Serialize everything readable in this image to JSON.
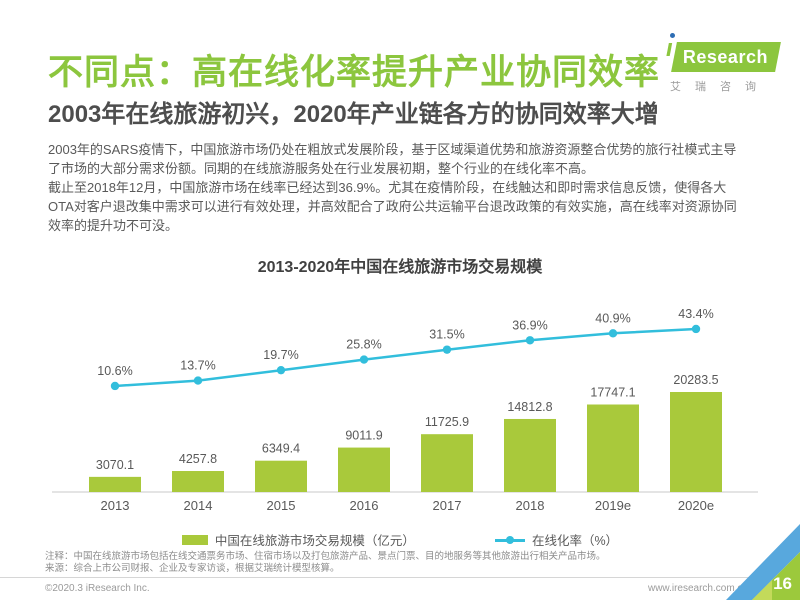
{
  "header": {
    "title": "不同点：高在线化率提升产业协同效率",
    "subtitle": "2003年在线旅游初兴，2020年产业链各方的协同效率大增",
    "logo": {
      "brand": "Research",
      "brand_i": "ı",
      "caption": "艾瑞咨询"
    }
  },
  "body": {
    "lines": [
      "2003年的SARS疫情下，中国旅游市场仍处在粗放式发展阶段，基于区域渠道优势和旅游资源整合优势的旅行社模式主导",
      "了市场的大部分需求份额。同期的在线旅游服务处在行业发展初期，整个行业的在线化率不高。",
      "截止至2018年12月，中国旅游市场在线率已经达到36.9%。尤其在疫情阶段，在线触达和即时需求信息反馈，使得各大",
      "OTA对客户退改集中需求可以进行有效处理，并高效配合了政府公共运输平台退改政策的有效实施，高在线率对资源协同",
      "效率的提升功不可没。"
    ]
  },
  "chart_data": {
    "type": "bar+line",
    "title": "2013-2020年中国在线旅游市场交易规模",
    "categories": [
      "2013",
      "2014",
      "2015",
      "2016",
      "2017",
      "2018",
      "2019e",
      "2020e"
    ],
    "series": [
      {
        "name": "中国在线旅游市场交易规模（亿元）",
        "type": "bar",
        "values": [
          3070.1,
          4257.8,
          6349.4,
          9011.9,
          11725.9,
          14812.8,
          17747.1,
          20283.5
        ],
        "color": "#A9C93B"
      },
      {
        "name": "在线化率（%）",
        "type": "line",
        "values": [
          10.6,
          13.7,
          19.7,
          25.8,
          31.5,
          36.9,
          40.9,
          43.4
        ],
        "unit": "%",
        "color": "#32BEDC"
      }
    ],
    "xlabel": "",
    "ylabel": "",
    "grid": false,
    "legend_position": "bottom",
    "value_labels": true
  },
  "notes": {
    "line1": "注释：中国在线旅游市场包括在线交通票务市场、住宿市场以及打包旅游产品、景点门票、目的地服务等其他旅游出行相关产品市场。",
    "line2": "来源：综合上市公司财报、企业及专家访谈，根据艾瑞统计模型核算。"
  },
  "footer": {
    "copyright": "©2020.3 iResearch Inc.",
    "website": "www.iresearch.com.cn",
    "page_number": "16"
  },
  "colors": {
    "title_green": "#8CC63E",
    "bar_green": "#A9C93B",
    "line_cyan": "#32BEDC",
    "text_dark": "#4D4D4D",
    "text_body": "#595959",
    "corner_blue": "#58A8DD",
    "corner_green": "#9CC93C",
    "corner_light_green": "#C3DA5A"
  }
}
